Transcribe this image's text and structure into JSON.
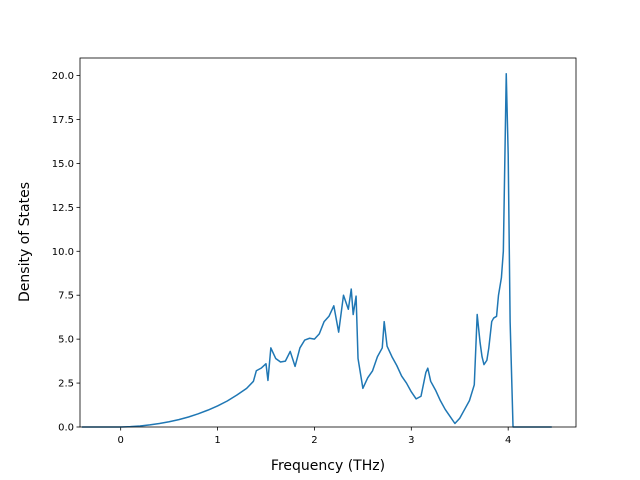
{
  "chart_data": {
    "type": "line",
    "title": "",
    "xlabel": "Frequency (THz)",
    "ylabel": "Density of States",
    "xlim": [
      -0.42,
      4.7
    ],
    "ylim": [
      0,
      21
    ],
    "xticks": [
      0,
      1,
      2,
      3,
      4
    ],
    "xtick_labels": [
      "0",
      "1",
      "2",
      "3",
      "4"
    ],
    "yticks": [
      0,
      2.5,
      5,
      7.5,
      10,
      12.5,
      15,
      17.5,
      20
    ],
    "ytick_labels": [
      "0.0",
      "2.5",
      "5.0",
      "7.5",
      "10.0",
      "12.5",
      "15.0",
      "17.5",
      "20.0"
    ],
    "grid": false,
    "legend": "none",
    "line_color": "#1f77b4",
    "series": [
      {
        "x": [
          -0.4,
          0.0,
          0.1,
          0.2,
          0.3,
          0.4,
          0.5,
          0.6,
          0.7,
          0.8,
          0.9,
          1.0,
          1.1,
          1.2,
          1.3,
          1.37,
          1.4,
          1.45,
          1.5,
          1.52,
          1.55,
          1.6,
          1.65,
          1.7,
          1.75,
          1.8,
          1.85,
          1.9,
          1.95,
          2.0,
          2.05,
          2.1,
          2.15,
          2.2,
          2.25,
          2.3,
          2.35,
          2.38,
          2.4,
          2.43,
          2.45,
          2.5,
          2.55,
          2.6,
          2.65,
          2.7,
          2.72,
          2.75,
          2.8,
          2.85,
          2.9,
          2.95,
          3.0,
          3.05,
          3.1,
          3.15,
          3.17,
          3.2,
          3.25,
          3.3,
          3.35,
          3.4,
          3.45,
          3.5,
          3.55,
          3.6,
          3.65,
          3.68,
          3.71,
          3.73,
          3.75,
          3.78,
          3.8,
          3.83,
          3.85,
          3.88,
          3.9,
          3.93,
          3.95,
          3.98,
          4.0,
          4.02,
          4.05,
          4.07,
          4.1,
          4.2,
          4.3,
          4.4,
          4.45
        ],
        "y": [
          0,
          0,
          0.02,
          0.06,
          0.12,
          0.2,
          0.3,
          0.42,
          0.57,
          0.75,
          0.96,
          1.2,
          1.48,
          1.82,
          2.2,
          2.6,
          3.2,
          3.35,
          3.6,
          2.65,
          4.5,
          3.9,
          3.7,
          3.75,
          4.3,
          3.45,
          4.5,
          4.95,
          5.05,
          5.0,
          5.3,
          6.0,
          6.3,
          6.9,
          5.4,
          7.5,
          6.7,
          7.85,
          6.4,
          7.45,
          3.9,
          2.2,
          2.8,
          3.2,
          4.0,
          4.5,
          6.0,
          4.6,
          4.0,
          3.5,
          2.9,
          2.5,
          2.0,
          1.6,
          1.75,
          3.1,
          3.35,
          2.6,
          2.1,
          1.5,
          1.0,
          0.6,
          0.2,
          0.5,
          1.0,
          1.5,
          2.4,
          6.4,
          4.8,
          4.0,
          3.55,
          3.8,
          4.5,
          6.0,
          6.2,
          6.3,
          7.5,
          8.5,
          10.0,
          20.1,
          15.5,
          6.0,
          0,
          0,
          0,
          0,
          0,
          0,
          0
        ]
      }
    ]
  }
}
